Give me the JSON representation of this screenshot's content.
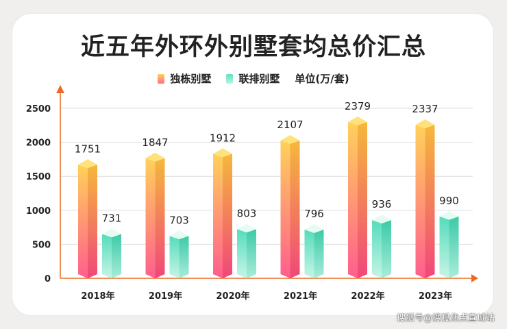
{
  "title": "近五年外环外别墅套均总价汇总",
  "legend": {
    "series_a": "独栋别墅",
    "series_b": "联排别墅",
    "unit": "单位(万/套)"
  },
  "watermark": "搜狐号@搜狐焦点宣城站",
  "colors": {
    "series_a_top": "#ffe27a",
    "series_a_front_top": "#ffd15a",
    "series_a_front_bottom": "#ff5e8e",
    "series_b_top": "#e6fbf2",
    "series_b_front_top": "#55dcbc",
    "series_b_front_bottom": "#c6f5e6",
    "axis": "#ee6a22"
  },
  "chart_data": {
    "type": "bar",
    "categories": [
      "2018年",
      "2019年",
      "2020年",
      "2021年",
      "2022年",
      "2023年"
    ],
    "series": [
      {
        "name": "独栋别墅",
        "values": [
          1751,
          1847,
          1912,
          2107,
          2379,
          2337
        ]
      },
      {
        "name": "联排别墅",
        "values": [
          731,
          703,
          803,
          796,
          936,
          990
        ]
      }
    ],
    "yticks": [
      0,
      500,
      1000,
      1500,
      2000,
      2500
    ],
    "ylim": [
      0,
      2500
    ],
    "grid": true,
    "legend_position": "top"
  }
}
